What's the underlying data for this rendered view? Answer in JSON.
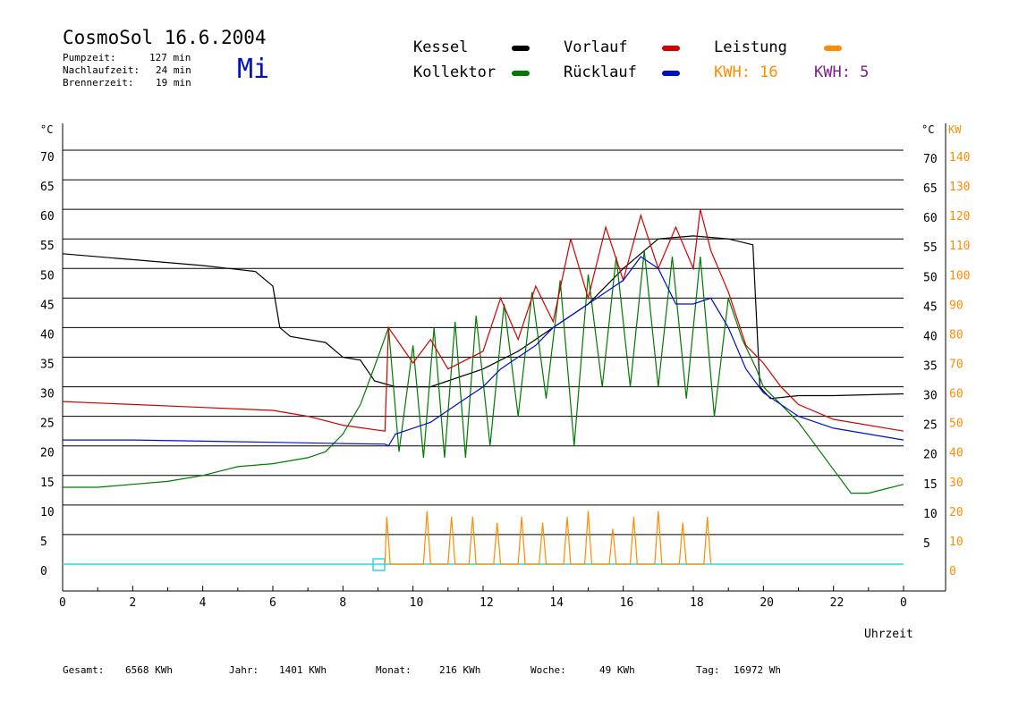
{
  "header": {
    "title": "CosmoSol 16.6.2004",
    "day": "Mi",
    "stats": [
      {
        "label": "Pumpzeit:",
        "value": "127 min"
      },
      {
        "label": "Nachlaufzeit:",
        "value": "24 min"
      },
      {
        "label": "Brennerzeit:",
        "value": "19 min"
      }
    ]
  },
  "legend": {
    "kessel": "Kessel",
    "kollektor": "Kollektor",
    "vorlauf": "Vorlauf",
    "ruecklauf": "Rücklauf",
    "leistung": "Leistung",
    "kwh1": "KWH: 16",
    "kwh2": "KWH: 5"
  },
  "colors": {
    "kessel": "#000000",
    "kollektor": "#007a00",
    "vorlauf": "#d40000",
    "ruecklauf": "#0010c8",
    "leistung": "#ff8c00",
    "kwh2": "#7a1f8a",
    "baseline": "#33d6d6"
  },
  "footer": [
    {
      "label": "Gesamt:",
      "value": "6568 KWh"
    },
    {
      "label": "Jahr:",
      "value": "1401 KWh"
    },
    {
      "label": "Monat:",
      "value": "216 KWh"
    },
    {
      "label": "Woche:",
      "value": "49 KWh"
    },
    {
      "label": "Tag:",
      "value": "16972 Wh"
    }
  ],
  "chart_data": {
    "type": "line",
    "xlabel": "Uhrzeit",
    "ylabel_left": "°C",
    "ylabel_right_1": "°C",
    "ylabel_right_2": "KW",
    "xlim": [
      0,
      24
    ],
    "ylim": [
      0,
      70
    ],
    "grid": true,
    "x_ticks": [
      "0",
      "2",
      "4",
      "6",
      "8",
      "10",
      "12",
      "14",
      "16",
      "18",
      "20",
      "22",
      "0"
    ],
    "y_ticks_left": [
      "0",
      "5",
      "10",
      "15",
      "20",
      "25",
      "30",
      "35",
      "40",
      "45",
      "50",
      "55",
      "60",
      "65",
      "70"
    ],
    "y_ticks_right_temp": [
      "5",
      "10",
      "15",
      "20",
      "25",
      "30",
      "35",
      "40",
      "45",
      "50",
      "55",
      "60",
      "65",
      "70"
    ],
    "y_ticks_right_kw": [
      "0",
      "10",
      "20",
      "30",
      "40",
      "50",
      "60",
      "70",
      "80",
      "90",
      "100",
      "110",
      "120",
      "130",
      "140"
    ],
    "series": [
      {
        "name": "Kessel",
        "points": [
          [
            0,
            52.5
          ],
          [
            2,
            51.5
          ],
          [
            4,
            50.5
          ],
          [
            5.5,
            49.5
          ],
          [
            6,
            47
          ],
          [
            6.2,
            40
          ],
          [
            6.5,
            38.5
          ],
          [
            7.5,
            37.5
          ],
          [
            8,
            35
          ],
          [
            8.5,
            34.5
          ],
          [
            8.9,
            31
          ],
          [
            9.5,
            30
          ],
          [
            10.5,
            30
          ],
          [
            11,
            31
          ],
          [
            12,
            33
          ],
          [
            13,
            36
          ],
          [
            14,
            40
          ],
          [
            15,
            44
          ],
          [
            16,
            50
          ],
          [
            17,
            55
          ],
          [
            18,
            55.5
          ],
          [
            19,
            55
          ],
          [
            19.7,
            54
          ],
          [
            19.9,
            30
          ],
          [
            20.2,
            28
          ],
          [
            21,
            28.5
          ],
          [
            22,
            28.5
          ],
          [
            24,
            28.8
          ]
        ]
      },
      {
        "name": "Kollektor",
        "points": [
          [
            0,
            13
          ],
          [
            1,
            13
          ],
          [
            2,
            13.5
          ],
          [
            3,
            14
          ],
          [
            4,
            15
          ],
          [
            5,
            16.5
          ],
          [
            6,
            17
          ],
          [
            7,
            18
          ],
          [
            7.5,
            19
          ],
          [
            8,
            22
          ],
          [
            8.5,
            27
          ],
          [
            9,
            35
          ],
          [
            9.3,
            40
          ],
          [
            9.6,
            19
          ],
          [
            10,
            37
          ],
          [
            10.3,
            18
          ],
          [
            10.6,
            40
          ],
          [
            10.9,
            18
          ],
          [
            11.2,
            41
          ],
          [
            11.5,
            18
          ],
          [
            11.8,
            42
          ],
          [
            12.2,
            20
          ],
          [
            12.6,
            44
          ],
          [
            13,
            25
          ],
          [
            13.4,
            46
          ],
          [
            13.8,
            28
          ],
          [
            14.2,
            48
          ],
          [
            14.6,
            20
          ],
          [
            15,
            49
          ],
          [
            15.4,
            30
          ],
          [
            15.8,
            52
          ],
          [
            16.2,
            30
          ],
          [
            16.6,
            53
          ],
          [
            17,
            30
          ],
          [
            17.4,
            52
          ],
          [
            17.8,
            28
          ],
          [
            18.2,
            52
          ],
          [
            18.6,
            25
          ],
          [
            19,
            45
          ],
          [
            19.4,
            38
          ],
          [
            19.8,
            33
          ],
          [
            20,
            30
          ],
          [
            20.5,
            27
          ],
          [
            21,
            24
          ],
          [
            21.5,
            20
          ],
          [
            22,
            16
          ],
          [
            22.5,
            12
          ],
          [
            23,
            12
          ],
          [
            24,
            13.5
          ]
        ]
      },
      {
        "name": "Vorlauf",
        "points": [
          [
            0,
            27.5
          ],
          [
            2,
            27
          ],
          [
            4,
            26.5
          ],
          [
            6,
            26
          ],
          [
            7,
            25
          ],
          [
            8,
            23.5
          ],
          [
            9.2,
            22.5
          ],
          [
            9.3,
            40
          ],
          [
            10,
            34
          ],
          [
            10.5,
            38
          ],
          [
            11,
            33
          ],
          [
            12,
            36
          ],
          [
            12.5,
            45
          ],
          [
            13,
            38
          ],
          [
            13.5,
            47
          ],
          [
            14,
            41
          ],
          [
            14.5,
            55
          ],
          [
            15,
            45
          ],
          [
            15.5,
            57
          ],
          [
            16,
            48
          ],
          [
            16.5,
            59
          ],
          [
            17,
            50
          ],
          [
            17.5,
            57
          ],
          [
            18,
            50
          ],
          [
            18.2,
            60
          ],
          [
            18.5,
            53
          ],
          [
            19,
            46
          ],
          [
            19.5,
            37
          ],
          [
            20,
            34
          ],
          [
            20.5,
            30
          ],
          [
            21,
            27
          ],
          [
            22,
            24.5
          ],
          [
            24,
            22.5
          ]
        ]
      },
      {
        "name": "Rücklauf",
        "points": [
          [
            0,
            21
          ],
          [
            2,
            21
          ],
          [
            4,
            20.8
          ],
          [
            6,
            20.6
          ],
          [
            8,
            20.4
          ],
          [
            9.2,
            20.3
          ],
          [
            9.3,
            20
          ],
          [
            9.5,
            22
          ],
          [
            10,
            23
          ],
          [
            10.5,
            24
          ],
          [
            11,
            26
          ],
          [
            11.5,
            28
          ],
          [
            12,
            30
          ],
          [
            12.5,
            33
          ],
          [
            13,
            35
          ],
          [
            13.5,
            37
          ],
          [
            14,
            40
          ],
          [
            14.5,
            42
          ],
          [
            15,
            44
          ],
          [
            15.5,
            46
          ],
          [
            16,
            48
          ],
          [
            16.5,
            52
          ],
          [
            17,
            50
          ],
          [
            17.5,
            44
          ],
          [
            18,
            44
          ],
          [
            18.5,
            45
          ],
          [
            19,
            40
          ],
          [
            19.5,
            33
          ],
          [
            20,
            29
          ],
          [
            21,
            25
          ],
          [
            22,
            23
          ],
          [
            23,
            22
          ],
          [
            24,
            21
          ]
        ]
      },
      {
        "name": "Leistung",
        "points": [
          [
            9.2,
            0
          ],
          [
            9.25,
            8
          ],
          [
            9.35,
            0
          ],
          [
            10.3,
            0
          ],
          [
            10.4,
            9
          ],
          [
            10.5,
            0
          ],
          [
            11.0,
            0
          ],
          [
            11.1,
            8
          ],
          [
            11.2,
            0
          ],
          [
            11.6,
            0
          ],
          [
            11.7,
            8
          ],
          [
            11.8,
            0
          ],
          [
            12.3,
            0
          ],
          [
            12.4,
            7
          ],
          [
            12.5,
            0
          ],
          [
            13.0,
            0
          ],
          [
            13.1,
            8
          ],
          [
            13.2,
            0
          ],
          [
            13.6,
            0
          ],
          [
            13.7,
            7
          ],
          [
            13.8,
            0
          ],
          [
            14.3,
            0
          ],
          [
            14.4,
            8
          ],
          [
            14.5,
            0
          ],
          [
            14.9,
            0
          ],
          [
            15.0,
            9
          ],
          [
            15.1,
            0
          ],
          [
            15.6,
            0
          ],
          [
            15.7,
            6
          ],
          [
            15.8,
            0
          ],
          [
            16.2,
            0
          ],
          [
            16.3,
            8
          ],
          [
            16.4,
            0
          ],
          [
            16.9,
            0
          ],
          [
            17.0,
            9
          ],
          [
            17.1,
            0
          ],
          [
            17.6,
            0
          ],
          [
            17.7,
            7
          ],
          [
            17.8,
            0
          ],
          [
            18.3,
            0
          ],
          [
            18.4,
            8
          ],
          [
            18.5,
            0
          ]
        ]
      }
    ]
  }
}
